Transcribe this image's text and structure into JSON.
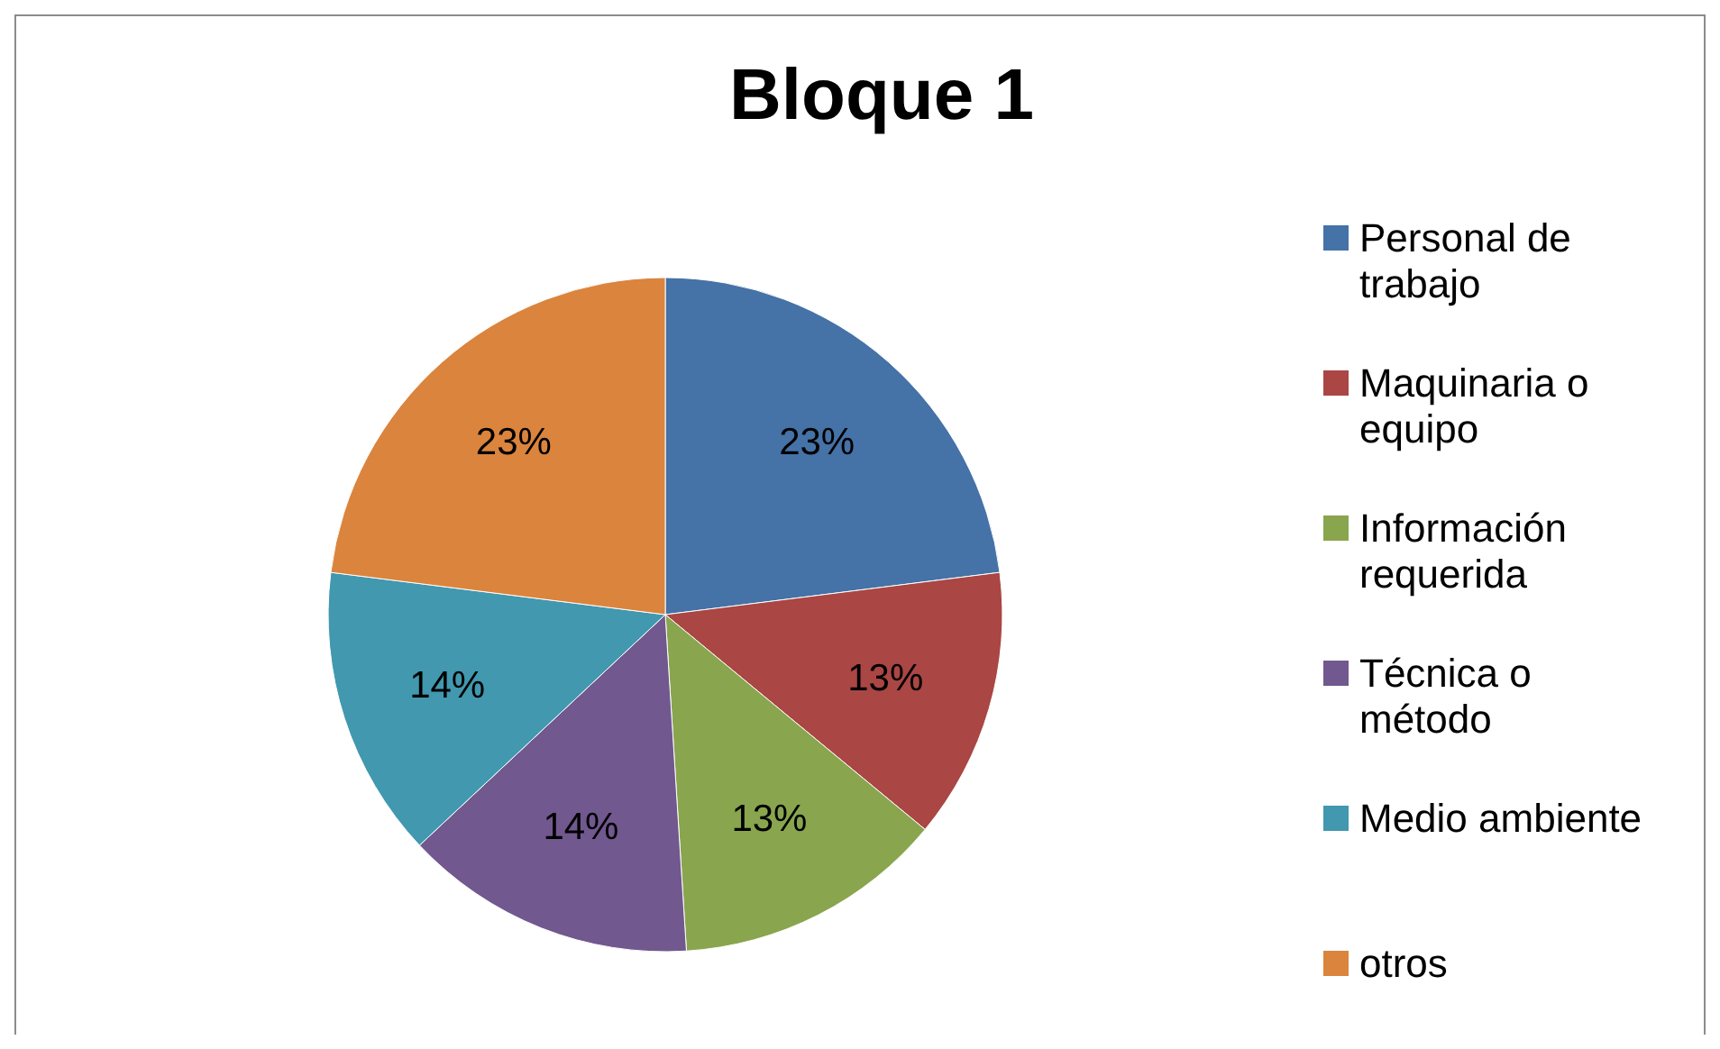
{
  "chart_data": {
    "type": "pie",
    "title": "Bloque 1",
    "categories": [
      "Personal de trabajo",
      "Maquinaria o equipo",
      "Información requerida",
      "Técnica o método",
      "Medio ambiente",
      "otros"
    ],
    "values": [
      23,
      13,
      13,
      14,
      14,
      23
    ],
    "value_labels": [
      "23%",
      "13%",
      "13%",
      "14%",
      "14%",
      "23%"
    ],
    "colors": [
      "#4572a7",
      "#aa4643",
      "#89a54e",
      "#71588f",
      "#4198af",
      "#db843d"
    ],
    "legend": "right"
  }
}
